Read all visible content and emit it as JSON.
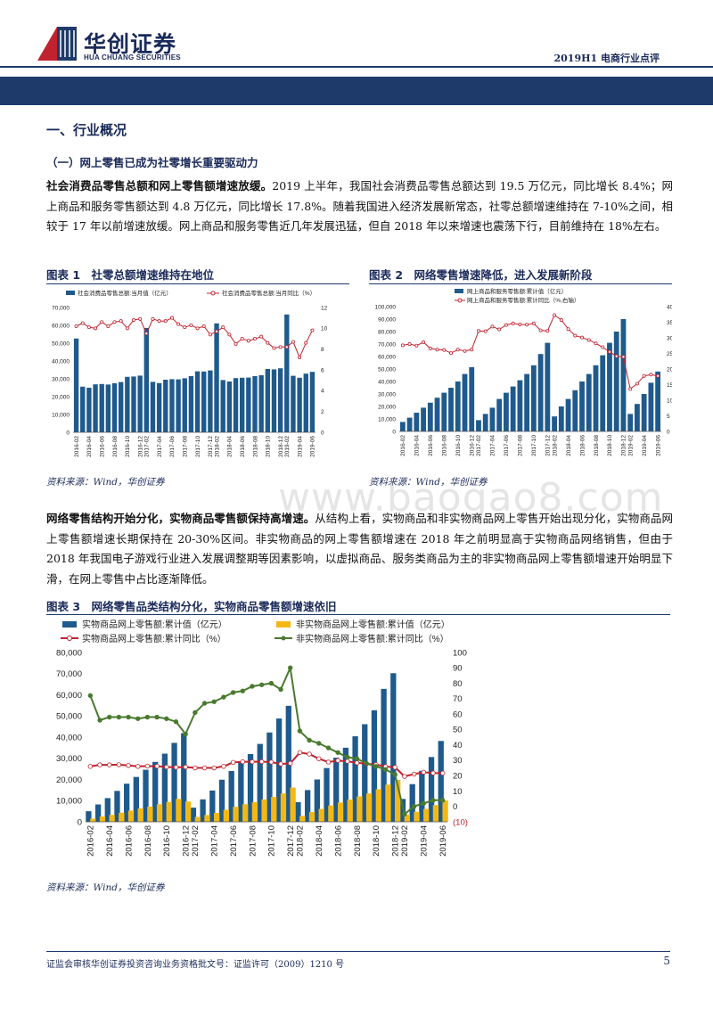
{
  "header": {
    "brand_cn": "华创证券",
    "brand_en": "HUA CHUANG SECURITIES",
    "report_tag": "2019H1 电商行业点评",
    "colors": {
      "navy": "#1e3a6b",
      "red": "#c0232f",
      "bar": "#1f5a8c",
      "orange": "#f3b816",
      "green": "#4a7a2f"
    }
  },
  "section": {
    "h1": "一、行业概况",
    "h2": "（一）网上零售已成为社零增长重要驱动力"
  },
  "para1": {
    "lead": "社会消费品零售总额和网上零售额增速放缓。",
    "body": "2019 上半年，我国社会消费品零售总额达到 19.5 万亿元，同比增长 8.4%；网上商品和服务零售额达到 4.8 万亿元，同比增长 17.8%。随着我国进入经济发展新常态，社零总额增速维持在 7-10%之间，相较于 17 年以前增速放缓。网上商品和服务零售近几年发展迅猛，但自 2018 年以来增速也震荡下行，目前维持在 18%左右。"
  },
  "figures": {
    "fig1_title": "图表 1　社零总额增速维持在地位",
    "fig2_title": "图表 2　网络零售增速降低，进入发展新阶段",
    "fig3_title": "图表 3　网络零售品类结构分化，实物商品零售额增速依旧",
    "source1": "资料来源：Wind，华创证券",
    "source2": "资料来源：Wind，华创证券",
    "source3": "资料来源：Wind，华创证券"
  },
  "para2": {
    "lead": "网络零售结构开始分化，实物商品零售额保持高增速。",
    "body": "从结构上看，实物商品和非实物商品网上零售开始出现分化，实物商品网上零售额增速长期保持在 20-30%区间。非实物商品的网上零售额增速在 2018 年之前明显高于实物商品网络销售，但由于 2018 年我国电子游戏行业进入发展调整期等因素影响，以虚拟商品、服务类商品为主的非实物商品网上零售额增速开始明显下滑，在网上零售中占比逐渐降低。"
  },
  "watermark": "www.baogao8.com",
  "footer": {
    "license": "证监会审核华创证券投资咨询业务资格批文号：证监许可（2009）1210 号",
    "page_no": "5"
  },
  "chart_data": [
    {
      "type": "bar",
      "title": "社零总额增速维持在地位",
      "legend": [
        "社会消费品零售总额:当月值（亿元）",
        "社会消费品零售总额:当月同比（%）"
      ],
      "x": [
        "2016-02",
        "2016-03",
        "2016-04",
        "2016-05",
        "2016-06",
        "2016-07",
        "2016-08",
        "2016-09",
        "2016-10",
        "2016-11",
        "2016-12",
        "2017-02",
        "2017-03",
        "2017-04",
        "2017-05",
        "2017-06",
        "2017-07",
        "2017-08",
        "2017-09",
        "2017-10",
        "2017-11",
        "2017-12",
        "2018-02",
        "2018-03",
        "2018-04",
        "2018-05",
        "2018-06",
        "2018-07",
        "2018-08",
        "2018-09",
        "2018-10",
        "2018-11",
        "2018-12",
        "2019-02",
        "2019-03",
        "2019-04",
        "2019-05",
        "2019-06"
      ],
      "x_ticks": [
        "2016-02",
        "2016-04",
        "2016-06",
        "2016-08",
        "2016-10",
        "2016-12",
        "2017-02",
        "2017-04",
        "2017-06",
        "2017-08",
        "2017-10",
        "2017-12",
        "2018-02",
        "2018-04",
        "2018-06",
        "2018-08",
        "2018-10",
        "2018-12",
        "2019-02",
        "2019-04",
        "2019-06"
      ],
      "values": [
        52600,
        25600,
        25000,
        26900,
        27100,
        26800,
        27500,
        28200,
        31100,
        31300,
        31800,
        58500,
        28300,
        27600,
        29500,
        29800,
        29700,
        30300,
        31500,
        34200,
        34100,
        34700,
        61100,
        29300,
        28500,
        30400,
        30600,
        30700,
        31500,
        32000,
        35500,
        35300,
        35900,
        66100,
        31700,
        30600,
        32900,
        33900
      ],
      "yoy": [
        10.2,
        10.5,
        10.1,
        10.0,
        10.6,
        10.2,
        10.6,
        10.7,
        10.0,
        10.8,
        10.9,
        9.5,
        10.9,
        10.7,
        10.7,
        11.0,
        10.4,
        10.1,
        10.3,
        10.0,
        10.2,
        9.4,
        9.7,
        10.1,
        9.4,
        8.5,
        9.0,
        8.8,
        9.0,
        9.2,
        8.6,
        8.1,
        8.2,
        8.2,
        8.7,
        7.2,
        8.6,
        9.8
      ],
      "ylim": [
        0,
        70000
      ],
      "yticks": [
        "0",
        "10,000",
        "20,000",
        "30,000",
        "40,000",
        "50,000",
        "60,000",
        "70,000"
      ],
      "y2lim": [
        0,
        12
      ],
      "y2ticks": [
        "0",
        "2",
        "4",
        "6",
        "8",
        "10",
        "12"
      ]
    },
    {
      "type": "bar",
      "title": "网络零售增速降低，进入发展新阶段",
      "legend": [
        "网上商品和服务零售额:累计值（亿元）",
        "网上商品和服务零售额:累计同比（%,右轴）"
      ],
      "x": [
        "2016-02",
        "2016-03",
        "2016-04",
        "2016-05",
        "2016-06",
        "2016-07",
        "2016-08",
        "2016-09",
        "2016-10",
        "2016-11",
        "2016-12",
        "2017-02",
        "2017-03",
        "2017-04",
        "2017-05",
        "2017-06",
        "2017-07",
        "2017-08",
        "2017-09",
        "2017-10",
        "2017-11",
        "2017-12",
        "2018-02",
        "2018-03",
        "2018-04",
        "2018-05",
        "2018-06",
        "2018-07",
        "2018-08",
        "2018-09",
        "2018-10",
        "2018-11",
        "2018-12",
        "2019-02",
        "2019-03",
        "2019-04",
        "2019-05",
        "2019-06"
      ],
      "x_ticks": [
        "2016-02",
        "2016-04",
        "2016-06",
        "2016-08",
        "2016-10",
        "2016-12",
        "2017-02",
        "2017-04",
        "2017-06",
        "2017-08",
        "2017-10",
        "2017-12",
        "2018-02",
        "2018-04",
        "2018-06",
        "2018-08",
        "2018-10",
        "2018-12",
        "2019-02",
        "2019-04",
        "2019-06"
      ],
      "values": [
        7600,
        11000,
        15000,
        19000,
        23000,
        27000,
        31000,
        35000,
        40000,
        46000,
        51500,
        9000,
        14000,
        19000,
        26000,
        31000,
        36000,
        41000,
        46000,
        53000,
        62000,
        71000,
        12000,
        20000,
        26000,
        33000,
        40000,
        46000,
        53000,
        61000,
        71000,
        80000,
        90000,
        14000,
        22000,
        30000,
        39000,
        48000
      ],
      "yoy": [
        27.6,
        28.0,
        27.5,
        28.6,
        26.6,
        26.2,
        26.1,
        25.1,
        26.2,
        25.8,
        26.2,
        32.2,
        32.1,
        33.6,
        32.7,
        34.1,
        34.6,
        34.3,
        34.2,
        34.6,
        32.4,
        32.2,
        37.3,
        35.7,
        32.8,
        30.7,
        30.1,
        29.3,
        28.2,
        27.0,
        25.5,
        24.1,
        23.9,
        13.6,
        15.3,
        17.8,
        18.2,
        17.8
      ],
      "ylim": [
        0,
        100000
      ],
      "yticks": [
        "0",
        "10,000",
        "20,000",
        "30,000",
        "40,000",
        "50,000",
        "60,000",
        "70,000",
        "80,000",
        "90,000",
        "100,000"
      ],
      "y2lim": [
        0,
        40
      ],
      "y2ticks": [
        "0",
        "5",
        "10",
        "15",
        "20",
        "25",
        "30",
        "35",
        "40"
      ]
    },
    {
      "type": "bar",
      "title": "网络零售品类结构分化，实物商品零售额增速依旧",
      "legend": [
        "实物商品网上零售额:累计值（亿元）",
        "非实物商品网上零售额:累计值（亿元）",
        "实物商品网上零售额:累计同比（%）",
        "非实物商品网上零售额:累计同比（%）"
      ],
      "x": [
        "2016-02",
        "2016-03",
        "2016-04",
        "2016-05",
        "2016-06",
        "2016-07",
        "2016-08",
        "2016-09",
        "2016-10",
        "2016-11",
        "2016-12",
        "2017-02",
        "2017-03",
        "2017-04",
        "2017-05",
        "2017-06",
        "2017-07",
        "2017-08",
        "2017-09",
        "2017-10",
        "2017-11",
        "2017-12",
        "2018-02",
        "2018-03",
        "2018-04",
        "2018-05",
        "2018-06",
        "2018-07",
        "2018-08",
        "2018-09",
        "2018-10",
        "2018-11",
        "2018-12",
        "2019-02",
        "2019-03",
        "2019-04",
        "2019-05",
        "2019-06"
      ],
      "x_ticks": [
        "2016-02",
        "2016-04",
        "2016-06",
        "2016-08",
        "2016-10",
        "2016-12",
        "2017-02",
        "2017-04",
        "2017-06",
        "2017-08",
        "2017-10",
        "2017-12",
        "2018-02",
        "2018-04",
        "2018-06",
        "2018-08",
        "2018-10",
        "2018-12",
        "2019-02",
        "2019-04",
        "2019-06"
      ],
      "series": [
        {
          "name": "实物商品网上零售额:累计值（亿元）",
          "values": [
            5000,
            8200,
            11200,
            14600,
            18000,
            21200,
            24600,
            28300,
            32200,
            37300,
            41900,
            6700,
            10600,
            14800,
            19900,
            24000,
            28000,
            32000,
            36800,
            42200,
            48800,
            54800,
            9300,
            15000,
            20000,
            25400,
            30300,
            35000,
            40400,
            46100,
            52700,
            62800,
            70200,
            10800,
            17800,
            24100,
            30600,
            38200
          ]
        },
        {
          "name": "非实物商品网上零售额:累计值（亿元）",
          "values": [
            1500,
            2500,
            3300,
            4300,
            5300,
            6300,
            7200,
            8300,
            9400,
            10800,
            9600,
            2300,
            3200,
            4200,
            5700,
            7100,
            8300,
            9300,
            10600,
            11800,
            13400,
            16200,
            2800,
            4600,
            6100,
            7700,
            9100,
            10500,
            12000,
            13400,
            15400,
            17600,
            19800,
            3300,
            4700,
            6100,
            7900,
            10100
          ]
        },
        {
          "name": "实物商品网上零售额:累计同比（%）",
          "values": [
            26.0,
            27.0,
            27.0,
            27.1,
            26.6,
            26.0,
            26.2,
            26.1,
            25.6,
            25.4,
            25.6,
            25.0,
            25.0,
            25.0,
            26.0,
            28.6,
            29.0,
            29.0,
            29.1,
            28.8,
            27.6,
            28.0,
            35.0,
            34.0,
            31.0,
            28.8,
            29.8,
            29.3,
            28.3,
            27.7,
            27.2,
            25.9,
            25.4,
            19.5,
            21.0,
            22.2,
            21.7,
            21.6
          ]
        },
        {
          "name": "非实物商品网上零售额:累计同比（%）",
          "values": [
            72,
            56,
            58,
            58,
            58,
            57,
            58,
            58,
            57,
            55,
            47,
            61,
            67,
            68,
            71,
            74,
            75,
            78,
            79,
            80,
            76,
            90,
            49,
            43,
            41,
            38,
            35,
            32,
            31,
            28,
            26,
            24,
            20.7,
            -5,
            0,
            2,
            4,
            4
          ]
        }
      ],
      "ylim": [
        0,
        80000
      ],
      "yticks": [
        "0",
        "10,000",
        "20,000",
        "30,000",
        "40,000",
        "50,000",
        "60,000",
        "70,000",
        "80,000"
      ],
      "y2lim": [
        -10,
        100
      ],
      "y2ticks": [
        "(10)",
        "0",
        "10",
        "20",
        "30",
        "40",
        "50",
        "60",
        "70",
        "80",
        "90",
        "100"
      ]
    }
  ]
}
